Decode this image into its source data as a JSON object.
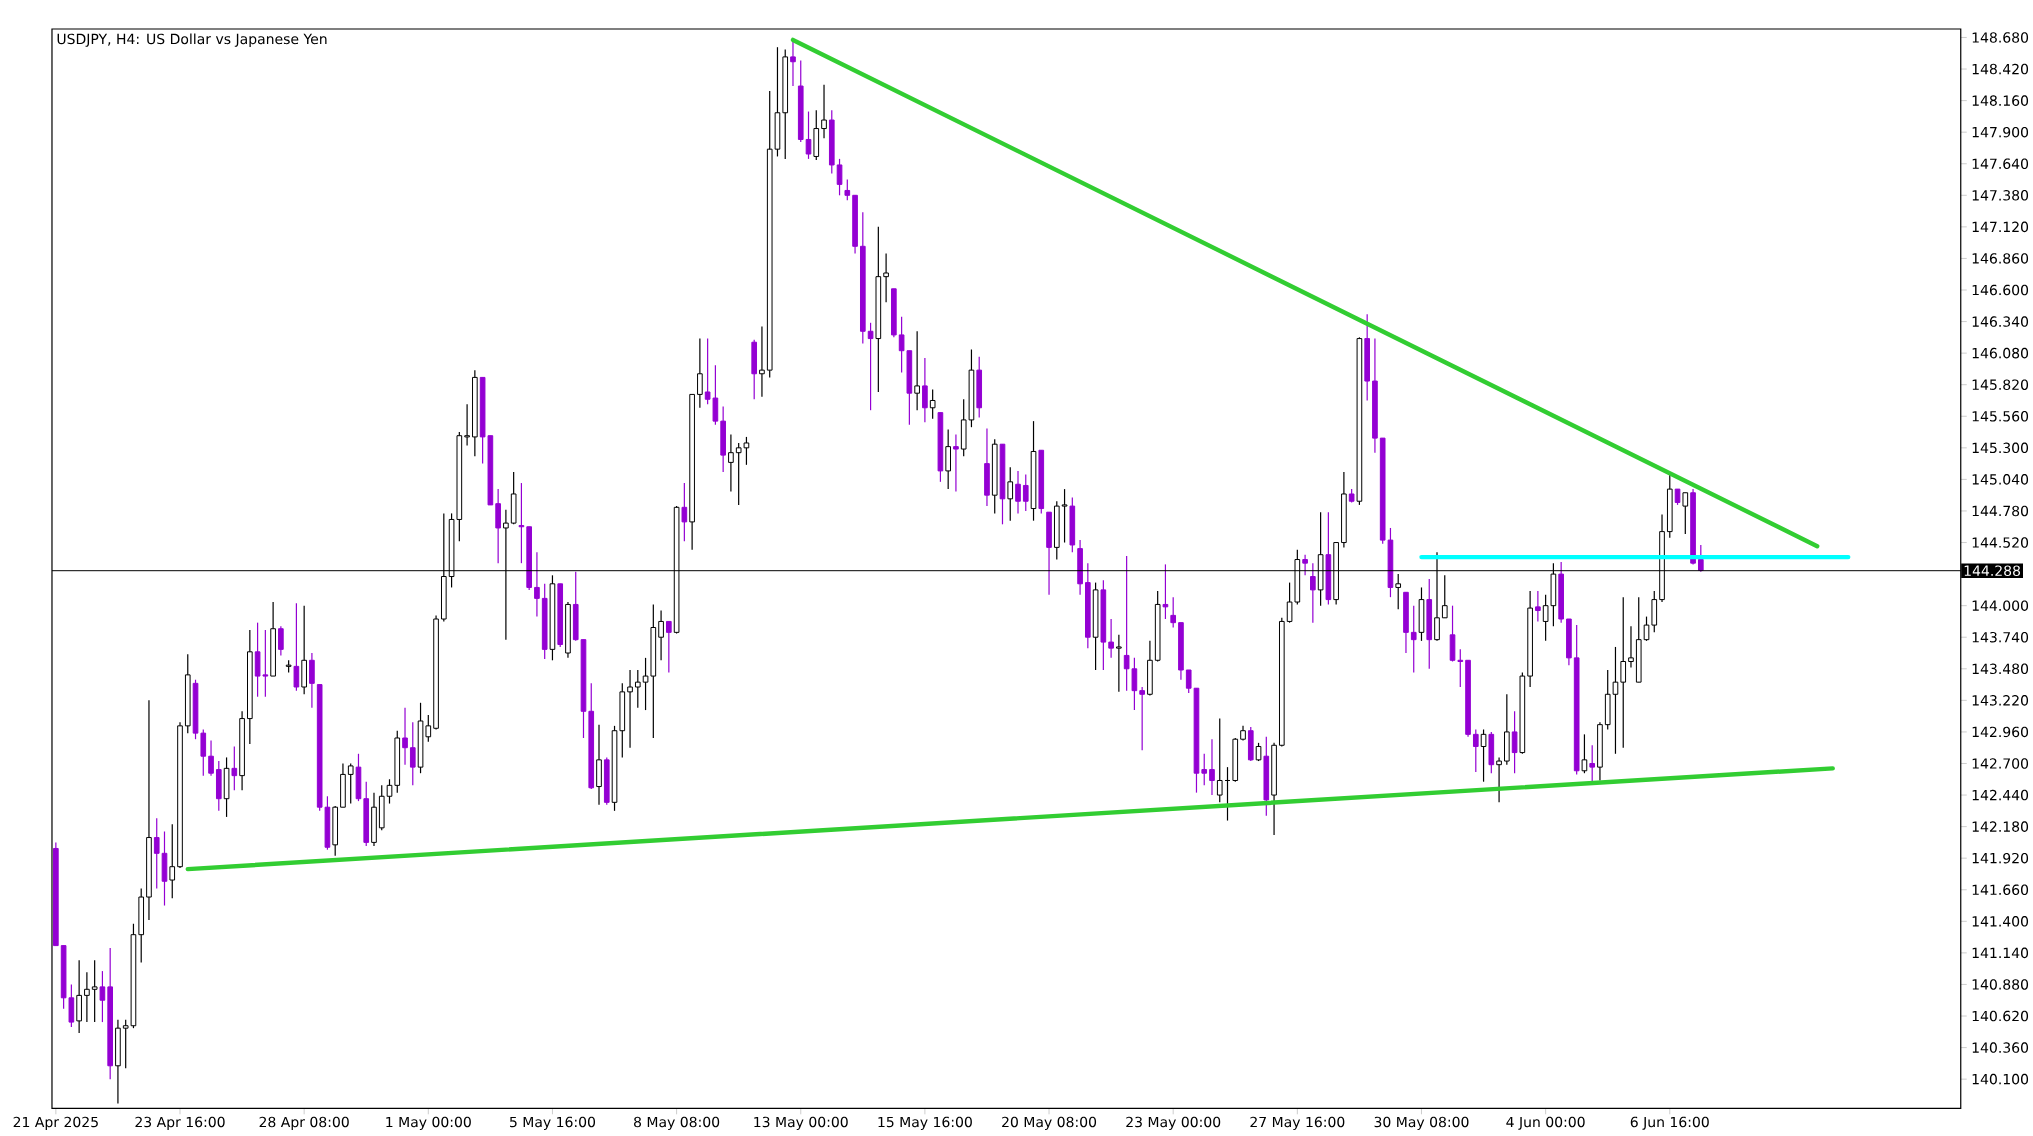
{
  "chart_data": {
    "type": "candlestick",
    "title": "USDJPY, H4:  US Dollar vs Japanese Yen",
    "categories": [
      "21 Apr 2025",
      null,
      null,
      null,
      null,
      null,
      null,
      null,
      null,
      null,
      null,
      null,
      null,
      null,
      null,
      null,
      "23 Apr 16:00",
      null,
      null,
      null,
      null,
      null,
      null,
      null,
      null,
      null,
      null,
      null,
      null,
      null,
      null,
      null,
      "28 Apr 08:00",
      null,
      null,
      null,
      null,
      null,
      null,
      null,
      null,
      null,
      null,
      null,
      null,
      null,
      null,
      null,
      "1 May 00:00",
      null,
      null,
      null,
      null,
      null,
      null,
      null,
      null,
      null,
      null,
      null,
      null,
      null,
      null,
      null,
      "5 May 16:00",
      null,
      null,
      null,
      null,
      null,
      null,
      null,
      null,
      null,
      null,
      null,
      null,
      null,
      null,
      null,
      "8 May 08:00",
      null,
      null,
      null,
      null,
      null,
      null,
      null,
      null,
      null,
      null,
      null,
      null,
      null,
      null,
      null,
      "13 May 00:00",
      null,
      null,
      null,
      null,
      null,
      null,
      null,
      null,
      null,
      null,
      null,
      null,
      null,
      null,
      null,
      "15 May 16:00",
      null,
      null,
      null,
      null,
      null,
      null,
      null,
      null,
      null,
      null,
      null,
      null,
      null,
      null,
      null,
      "20 May 08:00",
      null,
      null,
      null,
      null,
      null,
      null,
      null,
      null,
      null,
      null,
      null,
      null,
      null,
      null,
      null,
      "23 May 00:00",
      null,
      null,
      null,
      null,
      null,
      null,
      null,
      null,
      null,
      null,
      null,
      null,
      null,
      null,
      null,
      "27 May 16:00",
      null,
      null,
      null,
      null,
      null,
      null,
      null,
      null,
      null,
      null,
      null,
      null,
      null,
      null,
      null,
      "30 May 08:00",
      null,
      null,
      null,
      null,
      null,
      null,
      null,
      null,
      null,
      null,
      null,
      null,
      null,
      null,
      null,
      "4 Jun 00:00",
      null,
      null,
      null,
      null,
      null,
      null,
      null,
      null,
      null,
      null,
      null,
      null,
      null,
      null,
      null,
      "6 Jun 16:00",
      null,
      null,
      null,
      null,
      null,
      null,
      null,
      null,
      null,
      null,
      null,
      null,
      null,
      null,
      null,
      null,
      null,
      null,
      null,
      null,
      null,
      null,
      null,
      null,
      null,
      null,
      null,
      null,
      null,
      null,
      null,
      null,
      null,
      null,
      null,
      null,
      null
    ],
    "ylim": [
      139.86,
      148.75
    ],
    "yticks": [
      {
        "value": 148.68,
        "label": "148.680"
      },
      {
        "value": 148.42,
        "label": "148.420"
      },
      {
        "value": 148.16,
        "label": "148.160"
      },
      {
        "value": 147.9,
        "label": "147.900"
      },
      {
        "value": 147.64,
        "label": "147.640"
      },
      {
        "value": 147.38,
        "label": "147.380"
      },
      {
        "value": 147.12,
        "label": "147.120"
      },
      {
        "value": 146.86,
        "label": "146.860"
      },
      {
        "value": 146.6,
        "label": "146.600"
      },
      {
        "value": 146.34,
        "label": "146.340"
      },
      {
        "value": 146.08,
        "label": "146.080"
      },
      {
        "value": 145.82,
        "label": "145.820"
      },
      {
        "value": 145.56,
        "label": "145.560"
      },
      {
        "value": 145.3,
        "label": "145.300"
      },
      {
        "value": 145.04,
        "label": "145.040"
      },
      {
        "value": 144.78,
        "label": "144.780"
      },
      {
        "value": 144.52,
        "label": "144.520"
      },
      {
        "value": 144.0,
        "label": "144.000"
      },
      {
        "value": 143.74,
        "label": "143.740"
      },
      {
        "value": 143.48,
        "label": "143.480"
      },
      {
        "value": 143.22,
        "label": "143.220"
      },
      {
        "value": 142.96,
        "label": "142.960"
      },
      {
        "value": 142.7,
        "label": "142.700"
      },
      {
        "value": 142.44,
        "label": "142.440"
      },
      {
        "value": 142.18,
        "label": "142.180"
      },
      {
        "value": 141.92,
        "label": "141.920"
      },
      {
        "value": 141.66,
        "label": "141.660"
      },
      {
        "value": 141.4,
        "label": "141.400"
      },
      {
        "value": 141.14,
        "label": "141.140"
      },
      {
        "value": 140.88,
        "label": "140.880"
      },
      {
        "value": 140.62,
        "label": "140.620"
      },
      {
        "value": 140.36,
        "label": "140.360"
      },
      {
        "value": 140.1,
        "label": "140.100"
      }
    ],
    "ref_lines": [
      {
        "axis": "y",
        "value": 144.288,
        "label": "144.288",
        "color": "#000000"
      }
    ],
    "colors": [
      "#9400d3",
      "#9400d3",
      "#9400d3",
      "#ffffff",
      "#ffffff",
      "#ffffff",
      "#9400d3",
      "#9400d3",
      "#ffffff",
      "#ffffff",
      "#ffffff",
      "#ffffff",
      "#ffffff",
      "#9400d3",
      "#9400d3",
      "#ffffff",
      "#ffffff",
      "#ffffff",
      "#9400d3",
      "#9400d3",
      "#9400d3",
      "#9400d3",
      "#ffffff",
      "#9400d3",
      "#ffffff",
      "#ffffff",
      "#9400d3",
      "#9400d3",
      "#ffffff",
      "#9400d3",
      "#ffffff",
      "#9400d3",
      "#ffffff",
      "#9400d3",
      "#9400d3",
      "#9400d3",
      "#ffffff",
      "#ffffff",
      "#ffffff",
      "#9400d3",
      "#9400d3",
      "#ffffff",
      "#ffffff",
      "#ffffff",
      "#ffffff",
      "#9400d3",
      "#9400d3",
      "#ffffff",
      "#ffffff",
      "#ffffff",
      "#ffffff",
      "#ffffff",
      "#ffffff",
      "#ffffff",
      "#ffffff",
      "#9400d3",
      "#9400d3",
      "#9400d3",
      "#ffffff",
      "#ffffff",
      "#9400d3",
      "#9400d3",
      "#9400d3",
      "#9400d3",
      "#ffffff",
      "#9400d3",
      "#ffffff",
      "#9400d3",
      "#9400d3",
      "#9400d3",
      "#ffffff",
      "#9400d3",
      "#ffffff",
      "#ffffff",
      "#ffffff",
      "#ffffff",
      "#ffffff",
      "#ffffff",
      "#ffffff",
      "#9400d3",
      "#ffffff",
      "#9400d3",
      "#ffffff",
      "#ffffff",
      "#9400d3",
      "#9400d3",
      "#9400d3",
      "#ffffff",
      "#ffffff",
      "#ffffff",
      "#9400d3",
      "#ffffff",
      "#ffffff",
      "#ffffff",
      "#ffffff",
      "#9400d3",
      "#9400d3",
      "#9400d3",
      "#ffffff",
      "#ffffff",
      "#9400d3",
      "#9400d3",
      "#9400d3",
      "#9400d3",
      "#9400d3",
      "#9400d3",
      "#ffffff",
      "#ffffff",
      "#9400d3",
      "#9400d3",
      "#9400d3",
      "#ffffff",
      "#9400d3",
      "#ffffff",
      "#9400d3",
      "#ffffff",
      "#9400d3",
      "#ffffff",
      "#ffffff",
      "#9400d3",
      "#9400d3",
      "#ffffff",
      "#9400d3",
      "#ffffff",
      "#9400d3",
      "#9400d3",
      "#ffffff",
      "#9400d3",
      "#9400d3",
      "#ffffff",
      "#ffffff",
      "#9400d3",
      "#9400d3",
      "#9400d3",
      "#ffffff",
      "#9400d3",
      "#9400d3",
      "#ffffff",
      "#9400d3",
      "#9400d3",
      "#9400d3",
      "#ffffff",
      "#ffffff",
      "#9400d3",
      "#9400d3",
      "#9400d3",
      "#9400d3",
      "#9400d3",
      "#9400d3",
      "#9400d3",
      "#ffffff",
      "#000000",
      "#ffffff",
      "#ffffff",
      "#9400d3",
      "#ffffff",
      "#9400d3",
      "#ffffff",
      "#ffffff",
      "#ffffff",
      "#ffffff",
      "#9400d3",
      "#9400d3",
      "#ffffff",
      "#9400d3",
      "#ffffff",
      "#ffffff",
      "#9400d3",
      "#ffffff",
      "#9400d3",
      "#9400d3",
      "#9400d3",
      "#9400d3",
      "#ffffff",
      "#9400d3",
      "#9400d3",
      "#ffffff",
      "#9400d3",
      "#ffffff",
      "#ffffff",
      "#9400d3",
      "#9400d3",
      "#9400d3",
      "#9400d3",
      "#ffffff",
      "#9400d3",
      "#ffffff",
      "#ffffff",
      "#9400d3",
      "#ffffff",
      "#ffffff",
      "#9400d3",
      "#ffffff",
      "#ffffff",
      "#9400d3",
      "#9400d3",
      "#9400d3",
      "#ffffff",
      "#9400d3",
      "#ffffff",
      "#ffffff",
      "#ffffff",
      "#ffffff",
      "#ffffff",
      "#ffffff",
      "#ffffff",
      "#ffffff",
      "#ffffff",
      "#ffffff",
      "#9400d3",
      "#ffffff",
      "#9400d3",
      "#9400d3",
      null,
      null,
      null,
      null,
      null,
      null,
      null,
      null,
      null,
      null,
      null,
      null,
      null,
      null,
      null,
      null,
      null,
      null,
      null,
      null,
      null,
      null,
      null,
      null,
      null,
      null,
      null,
      null,
      null,
      null,
      null,
      null,
      null
    ],
    "ohlc": [
      [
        142.0,
        142.05,
        141.2,
        141.2
      ],
      [
        141.2,
        141.2,
        140.68,
        140.77
      ],
      [
        140.77,
        140.88,
        140.53,
        140.57
      ],
      [
        140.58,
        141.08,
        140.48,
        140.79
      ],
      [
        140.79,
        140.98,
        140.57,
        140.84
      ],
      [
        140.84,
        141.08,
        140.57,
        140.86
      ],
      [
        140.86,
        140.99,
        140.57,
        140.75
      ],
      [
        140.86,
        141.18,
        140.1,
        140.21
      ],
      [
        140.21,
        140.59,
        139.9,
        140.52
      ],
      [
        140.52,
        140.59,
        140.19,
        140.54
      ],
      [
        140.54,
        141.38,
        140.52,
        141.29
      ],
      [
        141.29,
        141.67,
        141.06,
        141.6
      ],
      [
        141.6,
        143.22,
        141.41,
        142.09
      ],
      [
        142.09,
        142.25,
        141.67,
        141.96
      ],
      [
        141.96,
        142.14,
        141.53,
        141.73
      ],
      [
        141.74,
        142.2,
        141.59,
        141.85
      ],
      [
        141.85,
        143.04,
        141.84,
        143.01
      ],
      [
        143.01,
        143.6,
        142.95,
        143.43
      ],
      [
        143.36,
        143.39,
        142.9,
        142.95
      ],
      [
        142.95,
        142.98,
        142.6,
        142.76
      ],
      [
        142.76,
        142.89,
        142.6,
        142.62
      ],
      [
        142.65,
        142.72,
        142.31,
        142.41
      ],
      [
        142.41,
        142.75,
        142.26,
        142.66
      ],
      [
        142.66,
        142.84,
        142.48,
        142.6
      ],
      [
        142.6,
        143.13,
        142.48,
        143.07
      ],
      [
        143.07,
        143.8,
        142.86,
        143.62
      ],
      [
        143.62,
        143.86,
        143.25,
        143.42
      ],
      [
        143.43,
        143.8,
        143.25,
        143.42
      ],
      [
        143.42,
        144.03,
        143.42,
        143.81
      ],
      [
        143.81,
        143.83,
        143.59,
        143.64
      ],
      [
        143.5,
        143.55,
        143.45,
        143.51
      ],
      [
        143.5,
        144.02,
        143.3,
        143.33
      ],
      [
        143.33,
        144.0,
        143.27,
        143.55
      ],
      [
        143.55,
        143.61,
        143.16,
        143.36
      ],
      [
        143.35,
        143.35,
        142.31,
        142.34
      ],
      [
        142.34,
        142.43,
        141.99,
        142.01
      ],
      [
        142.03,
        142.35,
        141.94,
        142.34
      ],
      [
        142.34,
        142.7,
        142.34,
        142.61
      ],
      [
        142.61,
        142.7,
        142.37,
        142.68
      ],
      [
        142.67,
        142.78,
        142.39,
        142.41
      ],
      [
        142.41,
        142.55,
        142.02,
        142.05
      ],
      [
        142.05,
        142.46,
        142.02,
        142.34
      ],
      [
        142.17,
        142.52,
        142.15,
        142.43
      ],
      [
        142.43,
        142.57,
        142.37,
        142.52
      ],
      [
        142.52,
        142.97,
        142.46,
        142.91
      ],
      [
        142.91,
        143.16,
        142.69,
        142.83
      ],
      [
        142.83,
        143.04,
        142.52,
        142.67
      ],
      [
        142.67,
        143.2,
        142.62,
        143.05
      ],
      [
        142.92,
        143.1,
        142.88,
        143.01
      ],
      [
        142.99,
        143.92,
        142.98,
        143.89
      ],
      [
        143.89,
        144.76,
        143.87,
        144.24
      ],
      [
        144.24,
        144.76,
        144.15,
        144.71
      ],
      [
        144.71,
        145.43,
        144.53,
        145.4
      ],
      [
        145.39,
        145.66,
        145.32,
        145.4
      ],
      [
        145.39,
        145.94,
        145.23,
        145.88
      ],
      [
        145.88,
        145.88,
        145.17,
        145.39
      ],
      [
        145.4,
        145.4,
        144.83,
        144.83
      ],
      [
        144.84,
        144.96,
        144.35,
        144.64
      ],
      [
        144.64,
        144.79,
        143.72,
        144.68
      ],
      [
        144.68,
        145.1,
        144.67,
        144.92
      ],
      [
        144.66,
        145.01,
        144.35,
        144.65
      ],
      [
        144.65,
        144.65,
        144.13,
        144.15
      ],
      [
        144.15,
        144.44,
        143.91,
        144.06
      ],
      [
        144.06,
        144.18,
        143.56,
        143.64
      ],
      [
        143.64,
        144.25,
        143.55,
        144.18
      ],
      [
        144.18,
        144.18,
        143.66,
        143.68
      ],
      [
        143.61,
        144.03,
        143.57,
        144.01
      ],
      [
        144.01,
        144.28,
        143.71,
        143.72
      ],
      [
        143.72,
        143.72,
        142.91,
        143.13
      ],
      [
        143.13,
        143.36,
        142.49,
        142.5
      ],
      [
        142.51,
        143.02,
        142.36,
        142.73
      ],
      [
        142.73,
        142.75,
        142.36,
        142.38
      ],
      [
        142.38,
        143.01,
        142.31,
        142.97
      ],
      [
        142.97,
        143.36,
        142.75,
        143.29
      ],
      [
        143.29,
        143.47,
        142.83,
        143.33
      ],
      [
        143.33,
        143.47,
        143.16,
        143.37
      ],
      [
        143.37,
        143.57,
        143.14,
        143.42
      ],
      [
        143.42,
        144.01,
        142.91,
        143.82
      ],
      [
        143.74,
        143.96,
        143.55,
        143.87
      ],
      [
        143.87,
        143.87,
        143.45,
        143.78
      ],
      [
        143.78,
        144.82,
        143.77,
        144.81
      ],
      [
        144.81,
        145.01,
        144.53,
        144.69
      ],
      [
        144.69,
        145.74,
        144.46,
        145.74
      ],
      [
        145.74,
        146.2,
        145.63,
        145.91
      ],
      [
        145.76,
        146.2,
        145.66,
        145.7
      ],
      [
        145.71,
        145.98,
        145.49,
        145.52
      ],
      [
        145.52,
        145.64,
        145.1,
        145.24
      ],
      [
        145.18,
        145.41,
        144.94,
        145.26
      ],
      [
        145.26,
        145.34,
        144.83,
        145.3
      ],
      [
        145.3,
        145.39,
        145.16,
        145.34
      ],
      [
        146.17,
        146.19,
        145.7,
        145.91
      ],
      [
        145.91,
        146.3,
        145.72,
        145.94
      ],
      [
        145.94,
        148.24,
        145.88,
        147.76
      ],
      [
        147.76,
        148.6,
        147.7,
        148.06
      ],
      [
        148.06,
        148.58,
        147.68,
        148.52
      ],
      [
        148.52,
        148.66,
        148.28,
        148.48
      ],
      [
        148.28,
        148.49,
        147.82,
        147.84
      ],
      [
        147.84,
        148.07,
        147.68,
        147.72
      ],
      [
        147.7,
        148.08,
        147.67,
        147.93
      ],
      [
        147.93,
        148.29,
        147.85,
        148.0
      ],
      [
        148.0,
        148.08,
        147.56,
        147.63
      ],
      [
        147.63,
        147.68,
        147.38,
        147.47
      ],
      [
        147.42,
        147.51,
        147.34,
        147.38
      ],
      [
        147.38,
        147.38,
        146.9,
        146.96
      ],
      [
        146.96,
        147.24,
        146.16,
        146.26
      ],
      [
        146.26,
        146.33,
        145.61,
        146.2
      ],
      [
        146.2,
        147.12,
        145.76,
        146.71
      ],
      [
        146.71,
        146.9,
        146.5,
        146.74
      ],
      [
        146.61,
        146.61,
        146.21,
        146.23
      ],
      [
        146.23,
        146.38,
        145.92,
        146.1
      ],
      [
        146.1,
        146.1,
        145.49,
        145.75
      ],
      [
        145.75,
        146.26,
        145.61,
        145.81
      ],
      [
        145.81,
        146.04,
        145.51,
        145.63
      ],
      [
        145.63,
        145.78,
        145.54,
        145.69
      ],
      [
        145.59,
        145.59,
        145.02,
        145.11
      ],
      [
        145.11,
        145.45,
        144.96,
        145.31
      ],
      [
        145.31,
        145.41,
        144.94,
        145.29
      ],
      [
        145.29,
        145.7,
        145.23,
        145.53
      ],
      [
        145.53,
        146.11,
        145.47,
        145.94
      ],
      [
        145.94,
        146.05,
        145.55,
        145.63
      ],
      [
        145.17,
        145.46,
        144.82,
        144.91
      ],
      [
        144.91,
        145.37,
        144.76,
        145.33
      ],
      [
        145.33,
        145.33,
        144.67,
        144.88
      ],
      [
        144.88,
        145.14,
        144.7,
        145.02
      ],
      [
        145.0,
        145.11,
        144.76,
        144.86
      ],
      [
        144.99,
        145.08,
        144.78,
        144.86
      ],
      [
        144.8,
        145.52,
        144.7,
        145.27
      ],
      [
        145.28,
        145.28,
        144.76,
        144.8
      ],
      [
        144.77,
        144.77,
        144.09,
        144.48
      ],
      [
        144.48,
        144.86,
        144.38,
        144.82
      ],
      [
        144.82,
        144.96,
        144.52,
        144.83
      ],
      [
        144.82,
        144.89,
        144.44,
        144.5
      ],
      [
        144.47,
        144.54,
        144.09,
        144.18
      ],
      [
        144.19,
        144.35,
        143.65,
        143.74
      ],
      [
        143.74,
        144.19,
        143.47,
        144.13
      ],
      [
        144.13,
        144.21,
        143.47,
        143.7
      ],
      [
        143.7,
        143.89,
        143.57,
        143.65
      ],
      [
        143.65,
        143.76,
        143.29,
        143.66
      ],
      [
        143.59,
        144.41,
        143.3,
        143.48
      ],
      [
        143.48,
        143.57,
        143.14,
        143.3
      ],
      [
        143.3,
        143.33,
        142.81,
        143.27
      ],
      [
        143.27,
        143.71,
        143.26,
        143.55
      ],
      [
        143.55,
        144.12,
        143.54,
        144.01
      ],
      [
        144.01,
        144.34,
        143.89,
        143.99
      ],
      [
        143.92,
        144.07,
        143.82,
        143.86
      ],
      [
        143.86,
        143.86,
        143.39,
        143.47
      ],
      [
        143.47,
        143.47,
        143.28,
        143.32
      ],
      [
        143.32,
        143.32,
        142.46,
        142.62
      ],
      [
        142.65,
        142.78,
        142.52,
        142.62
      ],
      [
        142.65,
        142.9,
        142.44,
        142.56
      ],
      [
        142.44,
        143.07,
        142.38,
        142.56
      ],
      [
        142.56,
        142.67,
        142.23,
        142.56
      ],
      [
        142.56,
        142.91,
        142.55,
        142.9
      ],
      [
        142.9,
        143.01,
        142.89,
        142.97
      ],
      [
        142.97,
        143.0,
        142.72,
        142.73
      ],
      [
        142.73,
        142.87,
        142.72,
        142.84
      ],
      [
        142.76,
        142.92,
        142.27,
        142.4
      ],
      [
        142.44,
        142.87,
        142.11,
        142.85
      ],
      [
        142.85,
        143.9,
        142.84,
        143.87
      ],
      [
        143.87,
        144.19,
        143.86,
        144.03
      ],
      [
        144.03,
        144.46,
        144.01,
        144.38
      ],
      [
        144.38,
        144.42,
        144.25,
        144.35
      ],
      [
        144.24,
        144.35,
        143.86,
        144.13
      ],
      [
        144.13,
        144.77,
        144.0,
        144.42
      ],
      [
        144.42,
        144.77,
        144.01,
        144.05
      ],
      [
        144.05,
        144.52,
        144.01,
        144.52
      ],
      [
        144.52,
        145.1,
        144.48,
        144.92
      ],
      [
        144.92,
        144.96,
        144.85,
        144.86
      ],
      [
        144.86,
        146.21,
        144.83,
        146.2
      ],
      [
        146.2,
        146.4,
        145.69,
        145.85
      ],
      [
        145.85,
        146.2,
        145.26,
        145.38
      ],
      [
        145.38,
        145.38,
        144.51,
        144.54
      ],
      [
        144.54,
        144.64,
        144.07,
        144.15
      ],
      [
        144.15,
        144.26,
        143.97,
        144.18
      ],
      [
        144.11,
        144.11,
        143.61,
        143.78
      ],
      [
        143.78,
        144.0,
        143.45,
        143.72
      ],
      [
        143.78,
        144.15,
        143.71,
        144.05
      ],
      [
        144.05,
        144.22,
        143.48,
        143.72
      ],
      [
        143.72,
        144.44,
        143.71,
        143.9
      ],
      [
        143.9,
        144.25,
        143.9,
        144.0
      ],
      [
        143.76,
        144.0,
        143.54,
        143.55
      ],
      [
        143.55,
        143.64,
        143.33,
        143.54
      ],
      [
        143.55,
        143.55,
        142.92,
        142.94
      ],
      [
        142.94,
        142.98,
        142.63,
        142.84
      ],
      [
        142.84,
        142.98,
        142.55,
        142.94
      ],
      [
        142.94,
        142.96,
        142.62,
        142.69
      ],
      [
        142.69,
        142.75,
        142.38,
        142.72
      ],
      [
        142.72,
        143.27,
        142.69,
        142.96
      ],
      [
        142.96,
        143.13,
        142.62,
        142.79
      ],
      [
        142.79,
        143.45,
        142.78,
        143.42
      ],
      [
        143.42,
        144.12,
        143.33,
        143.98
      ],
      [
        143.99,
        144.12,
        143.87,
        143.96
      ],
      [
        143.87,
        144.09,
        143.71,
        144.0
      ],
      [
        144.0,
        144.35,
        143.83,
        144.26
      ],
      [
        144.26,
        144.36,
        143.86,
        143.89
      ],
      [
        143.89,
        143.89,
        143.51,
        143.57
      ],
      [
        143.57,
        143.84,
        142.61,
        142.64
      ],
      [
        142.64,
        142.94,
        142.62,
        142.73
      ],
      [
        142.7,
        142.85,
        142.55,
        142.67
      ],
      [
        142.67,
        143.04,
        142.56,
        143.02
      ],
      [
        143.02,
        143.47,
        142.98,
        143.27
      ],
      [
        143.27,
        143.66,
        142.78,
        143.37
      ],
      [
        143.37,
        144.07,
        142.83,
        143.54
      ],
      [
        143.54,
        143.83,
        143.49,
        143.57
      ],
      [
        143.37,
        144.07,
        143.37,
        143.72
      ],
      [
        143.72,
        143.91,
        143.71,
        143.84
      ],
      [
        143.84,
        144.12,
        143.78,
        144.05
      ],
      [
        144.05,
        144.75,
        144.03,
        144.61
      ],
      [
        144.61,
        145.08,
        144.56,
        144.96
      ],
      [
        144.96,
        144.96,
        144.83,
        144.85
      ],
      [
        144.82,
        144.93,
        144.59,
        144.93
      ],
      [
        144.93,
        144.96,
        144.34,
        144.35
      ],
      [
        144.38,
        144.5,
        144.28,
        144.29
      ],
      null,
      null,
      null,
      null,
      null,
      null,
      null,
      null,
      null,
      null,
      null,
      null,
      null,
      null,
      null,
      null,
      null,
      null,
      null,
      null,
      null,
      null,
      null,
      null,
      null,
      null,
      null,
      null,
      null,
      null,
      null,
      null,
      null
    ],
    "series": [
      {
        "type": "line",
        "color": "#32cd32",
        "values": [
          null,
          null,
          null,
          null,
          null,
          null,
          null,
          null,
          null,
          null,
          null,
          null,
          null,
          null,
          null,
          null,
          null,
          null,
          null,
          null,
          null,
          null,
          null,
          null,
          null,
          null,
          null,
          null,
          null,
          null,
          null,
          null,
          null,
          null,
          null,
          null,
          null,
          null,
          null,
          null,
          null,
          null,
          null,
          null,
          null,
          null,
          null,
          null,
          null,
          null,
          null,
          null,
          null,
          null,
          null,
          null,
          null,
          null,
          null,
          null,
          null,
          null,
          null,
          null,
          null,
          null,
          null,
          null,
          null,
          null,
          null,
          null,
          null,
          null,
          null,
          null,
          null,
          null,
          null,
          null,
          null,
          null,
          null,
          null,
          null,
          null,
          null,
          null,
          null,
          null,
          null,
          null,
          null,
          null,
          null,
          148.66,
          null,
          null,
          null,
          null,
          null,
          null,
          null,
          null,
          null,
          null,
          null,
          null,
          null,
          null,
          null,
          null,
          null,
          null,
          null,
          null,
          null,
          null,
          null,
          null,
          null,
          null,
          null,
          null,
          null,
          null,
          null,
          null,
          null,
          null,
          null,
          null,
          null,
          null,
          null,
          null,
          null,
          null,
          null,
          null,
          null,
          null,
          null,
          null,
          null,
          null,
          null,
          null,
          null,
          null,
          null,
          null,
          null,
          null,
          null,
          null,
          null,
          null,
          null,
          null,
          null,
          null,
          null,
          null,
          null,
          null,
          null,
          null,
          null,
          null,
          null,
          null,
          null,
          null,
          null,
          null,
          null,
          null,
          null,
          null,
          null,
          null,
          null,
          null,
          null,
          null,
          null,
          null,
          null,
          null,
          null,
          null,
          null,
          null,
          null,
          null,
          null,
          null,
          null,
          null,
          null,
          null,
          null,
          null,
          null,
          null,
          null,
          null,
          null,
          null,
          null,
          null,
          null,
          null,
          null,
          null,
          null,
          null,
          null,
          null,
          null,
          null,
          null,
          null,
          null,
          null,
          null,
          144.49,
          null,
          null,
          null,
          null,
          null,
          null,
          null,
          null,
          null,
          null,
          null,
          null,
          null,
          null,
          null,
          null,
          null,
          null
        ]
      },
      {
        "type": "line",
        "color": "#32cd32",
        "values": [
          null,
          null,
          null,
          null,
          null,
          null,
          null,
          null,
          null,
          null,
          null,
          null,
          null,
          null,
          null,
          null,
          null,
          141.83,
          null,
          null,
          null,
          null,
          null,
          null,
          null,
          null,
          null,
          null,
          null,
          null,
          null,
          null,
          null,
          null,
          null,
          null,
          null,
          null,
          null,
          null,
          null,
          null,
          null,
          null,
          null,
          null,
          null,
          null,
          null,
          null,
          null,
          null,
          null,
          null,
          null,
          null,
          null,
          null,
          null,
          null,
          null,
          null,
          null,
          null,
          null,
          null,
          null,
          null,
          null,
          null,
          null,
          null,
          null,
          null,
          null,
          null,
          null,
          null,
          null,
          null,
          null,
          null,
          null,
          null,
          null,
          null,
          null,
          null,
          null,
          null,
          null,
          null,
          null,
          null,
          null,
          null,
          null,
          null,
          null,
          null,
          null,
          null,
          null,
          null,
          null,
          null,
          null,
          null,
          null,
          null,
          null,
          null,
          null,
          null,
          null,
          null,
          null,
          null,
          null,
          null,
          null,
          null,
          null,
          null,
          null,
          null,
          null,
          null,
          null,
          null,
          null,
          null,
          null,
          null,
          null,
          null,
          null,
          null,
          null,
          null,
          null,
          null,
          null,
          null,
          null,
          null,
          null,
          null,
          null,
          null,
          null,
          null,
          null,
          null,
          null,
          null,
          null,
          null,
          null,
          null,
          null,
          null,
          null,
          null,
          null,
          null,
          null,
          null,
          null,
          null,
          null,
          null,
          null,
          null,
          null,
          null,
          null,
          null,
          null,
          null,
          null,
          null,
          null,
          null,
          null,
          null,
          null,
          null,
          null,
          null,
          null,
          null,
          null,
          null,
          null,
          null,
          null,
          null,
          null,
          null,
          null,
          null,
          null,
          null,
          null,
          null,
          null,
          null,
          null,
          null,
          null,
          null,
          null,
          null,
          null,
          null,
          null,
          null,
          null,
          null,
          null,
          null,
          null,
          null,
          null,
          null,
          null,
          null,
          null,
          142.66,
          null,
          null,
          null,
          null,
          null,
          null,
          null,
          null,
          null,
          null,
          null,
          null,
          null,
          null,
          null,
          null
        ]
      },
      {
        "type": "line",
        "color": "#00ffff",
        "values": [
          null,
          null,
          null,
          null,
          null,
          null,
          null,
          null,
          null,
          null,
          null,
          null,
          null,
          null,
          null,
          null,
          null,
          null,
          null,
          null,
          null,
          null,
          null,
          null,
          null,
          null,
          null,
          null,
          null,
          null,
          null,
          null,
          null,
          null,
          null,
          null,
          null,
          null,
          null,
          null,
          null,
          null,
          null,
          null,
          null,
          null,
          null,
          null,
          null,
          null,
          null,
          null,
          null,
          null,
          null,
          null,
          null,
          null,
          null,
          null,
          null,
          null,
          null,
          null,
          null,
          null,
          null,
          null,
          null,
          null,
          null,
          null,
          null,
          null,
          null,
          null,
          null,
          null,
          null,
          null,
          null,
          null,
          null,
          null,
          null,
          null,
          null,
          null,
          null,
          null,
          null,
          null,
          null,
          null,
          null,
          null,
          null,
          null,
          null,
          null,
          null,
          null,
          null,
          null,
          null,
          null,
          null,
          null,
          null,
          null,
          null,
          null,
          null,
          null,
          null,
          null,
          null,
          null,
          null,
          null,
          null,
          null,
          null,
          null,
          null,
          null,
          null,
          null,
          null,
          null,
          null,
          null,
          null,
          null,
          null,
          null,
          null,
          null,
          null,
          null,
          null,
          null,
          null,
          null,
          null,
          null,
          null,
          null,
          null,
          null,
          null,
          null,
          null,
          null,
          null,
          null,
          null,
          null,
          null,
          null,
          null,
          null,
          null,
          null,
          null,
          null,
          null,
          null,
          null,
          null,
          null,
          null,
          null,
          null,
          null,
          null,
          144.4,
          null,
          null,
          null,
          null,
          null,
          null,
          null,
          null,
          null,
          null,
          null,
          null,
          null,
          null,
          null,
          null,
          null,
          null,
          null,
          null,
          null,
          null,
          null,
          null,
          null,
          null,
          null,
          null,
          null,
          null,
          null,
          null,
          null,
          null,
          null,
          null,
          null,
          null,
          null,
          null,
          null,
          null,
          null,
          null,
          null,
          null,
          null,
          null,
          null,
          null,
          null,
          null,
          null,
          null,
          144.4,
          null,
          null,
          null,
          null,
          null,
          null,
          null,
          null,
          null,
          null,
          null,
          null,
          null,
          null
        ]
      }
    ]
  }
}
